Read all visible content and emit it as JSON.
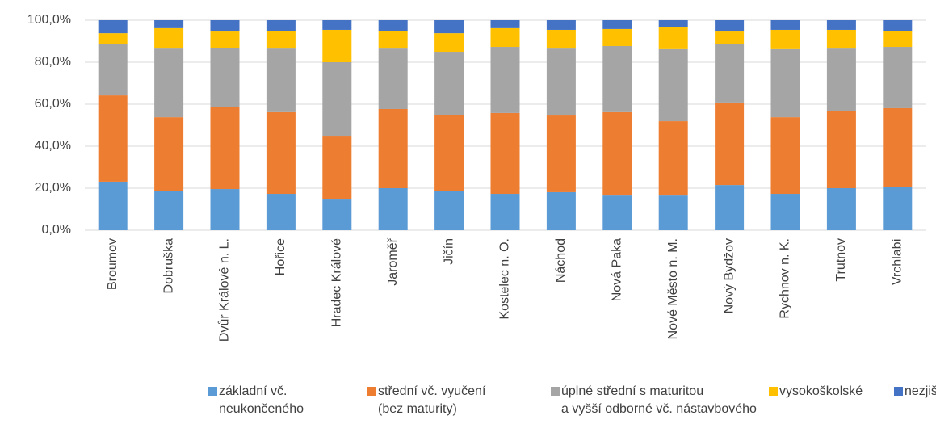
{
  "chart_data": {
    "type": "stacked_bar",
    "categories": [
      "Broumov",
      "Dobruška",
      "Dvůr Králové n. L.",
      "Hořice",
      "Hradec Králové",
      "Jaroměř",
      "Jičín",
      "Kostelec n. O.",
      "Náchod",
      "Nová Paka",
      "Nové Město n. M.",
      "Nový Bydžov",
      "Rychnov n. K.",
      "Trutnov",
      "Vrchlabí"
    ],
    "series": [
      {
        "name": "základní vč.\nneukončeného",
        "color": "#5b9bd5",
        "values": [
          23.1,
          18.5,
          19.6,
          17.3,
          14.6,
          20.0,
          18.5,
          17.3,
          18.1,
          16.5,
          16.5,
          21.5,
          17.3,
          20.0,
          20.4
        ]
      },
      {
        "name": "střední vč. vyučení\n(bez maturity)",
        "color": "#ed7d31",
        "values": [
          41.1,
          35.3,
          38.9,
          38.9,
          30.0,
          37.7,
          36.5,
          38.5,
          36.5,
          39.7,
          35.4,
          39.3,
          36.5,
          36.9,
          37.7
        ]
      },
      {
        "name": "úplné střední s maturitou\na vyšší odborné vč. nástavbového",
        "color": "#a5a5a5",
        "values": [
          24.3,
          32.7,
          28.4,
          30.3,
          35.4,
          28.8,
          29.6,
          31.5,
          31.9,
          31.5,
          34.3,
          27.7,
          32.4,
          29.6,
          29.2
        ]
      },
      {
        "name": "vysokoškolské",
        "color": "#ffc000",
        "values": [
          5.3,
          9.7,
          7.7,
          8.5,
          15.4,
          8.5,
          9.2,
          8.9,
          8.9,
          8.1,
          10.7,
          6.1,
          9.2,
          8.9,
          7.7
        ]
      },
      {
        "name": "nezjištěno",
        "color": "#4472c4",
        "values": [
          6.2,
          3.8,
          5.4,
          5.0,
          4.6,
          5.0,
          6.2,
          3.8,
          4.6,
          4.2,
          3.1,
          5.4,
          4.6,
          4.6,
          5.0
        ]
      }
    ],
    "ylim": [
      0,
      100
    ],
    "yticks": [
      {
        "value": 0,
        "label": "0,0%"
      },
      {
        "value": 20,
        "label": "20,0%"
      },
      {
        "value": 40,
        "label": "40,0%"
      },
      {
        "value": 60,
        "label": "60,0%"
      },
      {
        "value": 80,
        "label": "80,0%"
      },
      {
        "value": 100,
        "label": "100,0%"
      }
    ],
    "grid": true,
    "legend": "bottom"
  }
}
